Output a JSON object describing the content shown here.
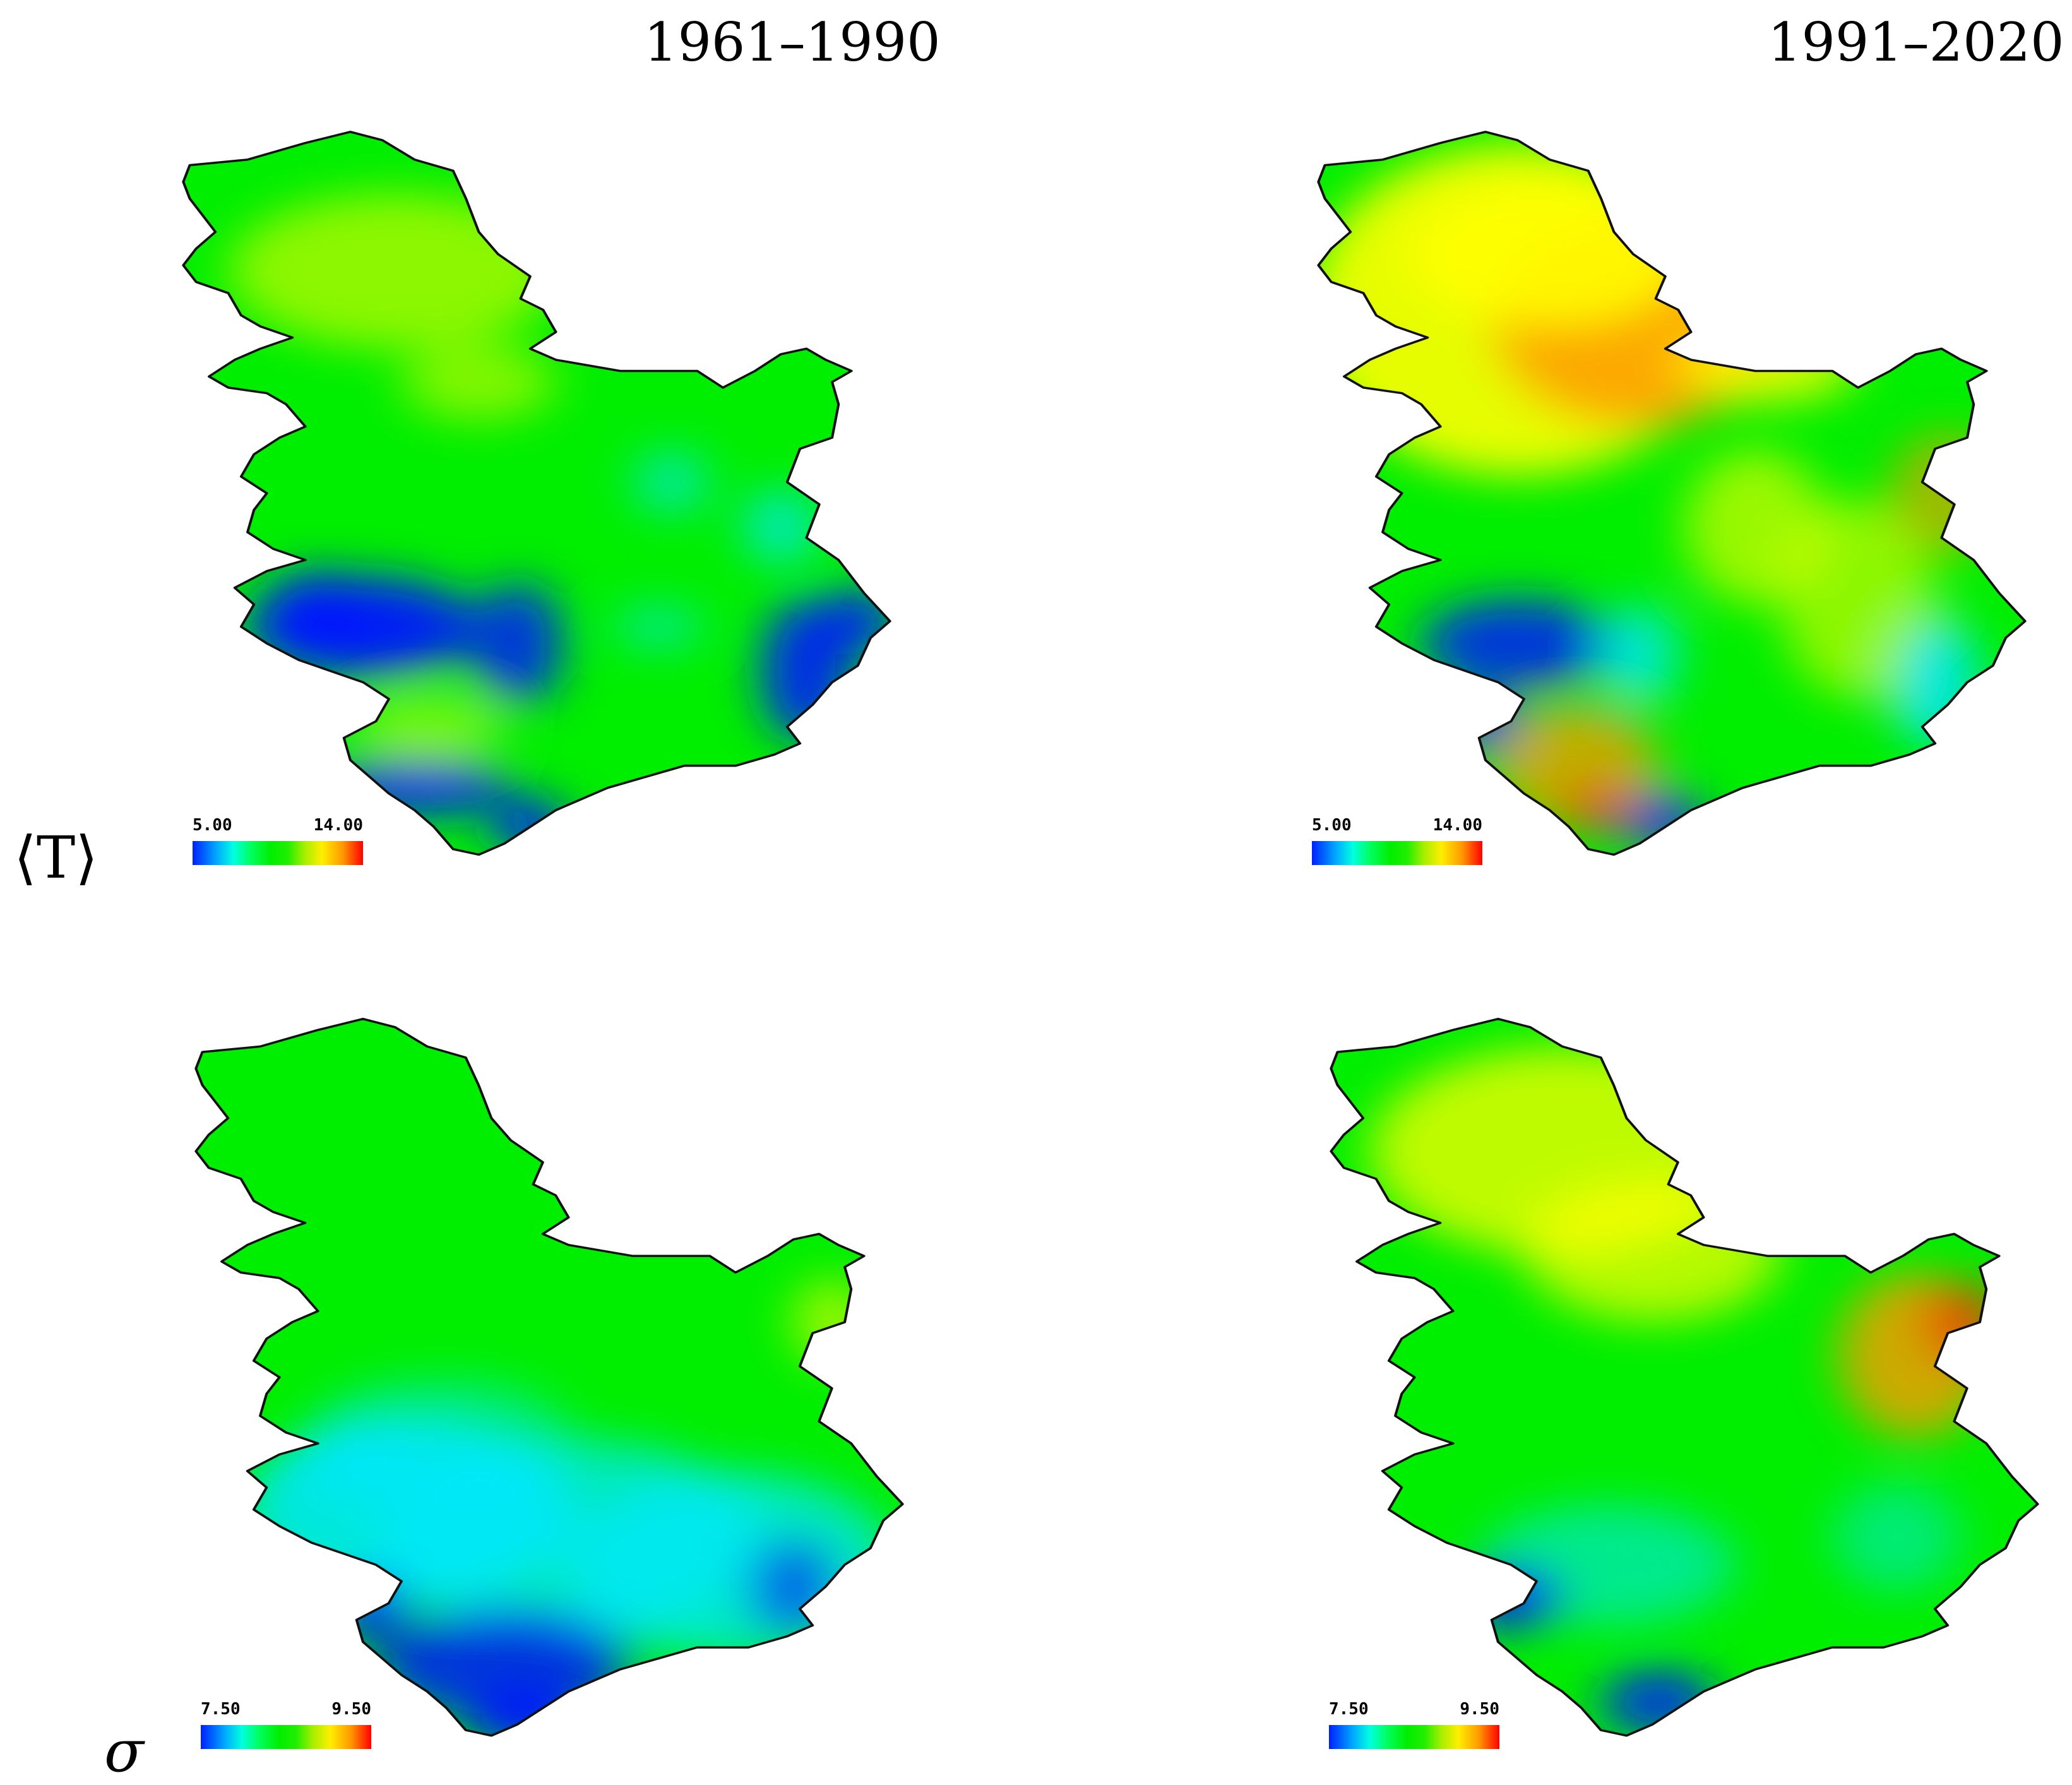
{
  "columns": {
    "left": "1961–1990",
    "right": "1991–2020"
  },
  "rows": {
    "top": "⟨T⟩",
    "bottom": "σ"
  },
  "panels": {
    "t_1961": {
      "min": "5.00",
      "max": "14.00"
    },
    "t_1991": {
      "min": "5.00",
      "max": "14.00"
    },
    "s_1961": {
      "min": "7.50",
      "max": "9.50"
    },
    "s_1991": {
      "min": "7.50",
      "max": "9.50"
    }
  },
  "colors": {
    "blue": "#0018ff",
    "cyan": "#00e8ff",
    "green": "#00ee00",
    "yellow": "#ffff00",
    "orange": "#ff9a00",
    "red": "#ff0000"
  }
}
